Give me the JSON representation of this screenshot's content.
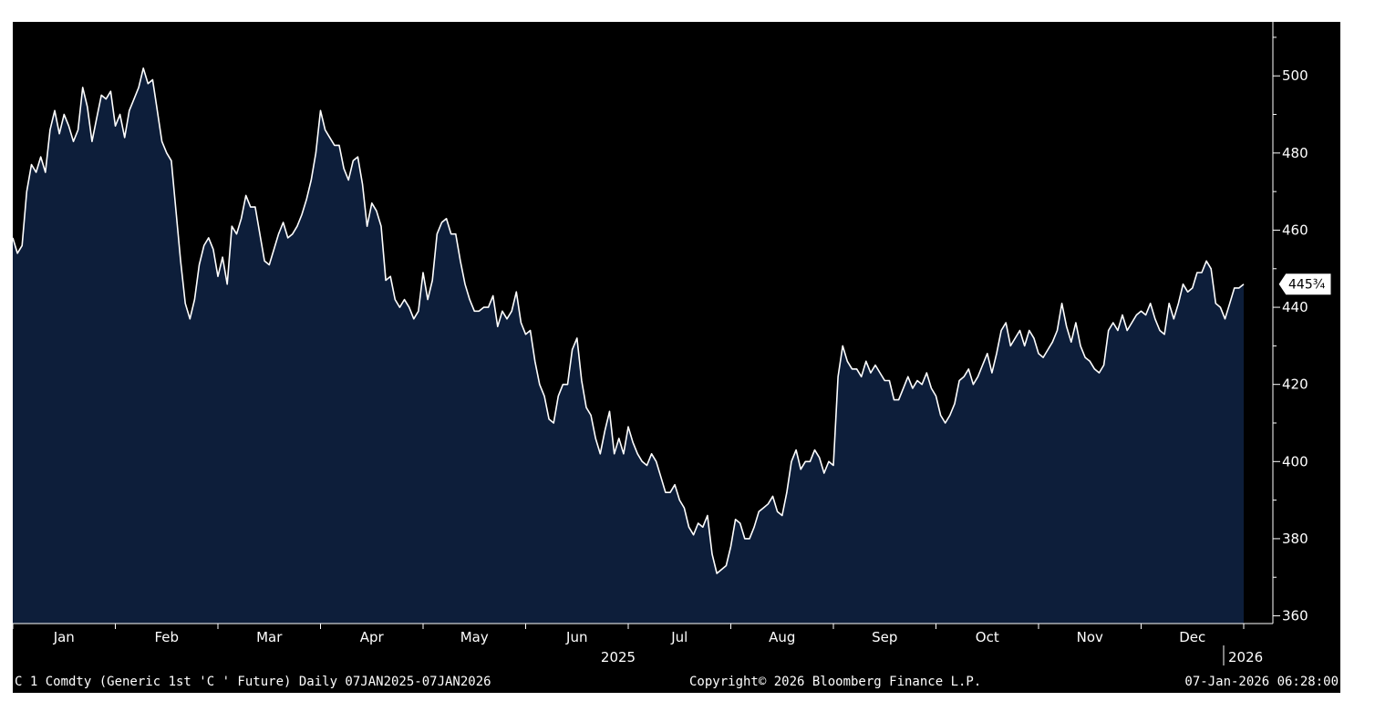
{
  "chart_data": {
    "type": "area",
    "ylim": [
      358,
      514
    ],
    "y_ticks": [
      360,
      380,
      400,
      420,
      440,
      460,
      480,
      500
    ],
    "month_ticks": [
      "Jan",
      "Feb",
      "Mar",
      "Apr",
      "May",
      "Jun",
      "Jul",
      "Aug",
      "Sep",
      "Oct",
      "Nov",
      "Dec"
    ],
    "year_labels": [
      "2025",
      "2026"
    ],
    "last_value_label": "445¾",
    "series": [
      {
        "values": [
          458,
          454,
          456,
          470,
          477,
          475,
          479,
          475,
          486,
          491,
          485,
          490,
          487,
          483,
          486,
          497,
          492,
          483,
          489,
          495,
          494,
          496,
          487,
          490,
          484,
          491,
          494,
          497,
          502,
          498,
          499,
          491,
          483,
          480,
          478,
          465,
          452,
          441,
          437,
          442,
          451,
          456,
          458,
          455,
          448,
          453,
          446,
          461,
          459,
          463,
          469,
          466,
          466,
          459,
          452,
          451,
          455,
          459,
          462,
          458,
          459,
          461,
          464,
          468,
          473,
          480,
          491,
          486,
          484,
          482,
          482,
          476,
          473,
          478,
          479,
          472,
          461,
          467,
          465,
          461,
          447,
          448,
          442,
          440,
          442,
          440,
          437,
          439,
          449,
          442,
          447,
          459,
          462,
          463,
          459,
          459,
          452,
          446,
          442,
          439,
          439,
          440,
          440,
          443,
          435,
          439,
          437,
          439,
          444,
          436,
          433,
          434,
          426,
          420,
          417,
          411,
          410,
          417,
          420,
          420,
          429,
          432,
          421,
          414,
          412,
          406,
          402,
          408,
          413,
          402,
          406,
          402,
          409,
          405,
          402,
          400,
          399,
          402,
          400,
          396,
          392,
          392,
          394,
          390,
          388,
          383,
          381,
          384,
          383,
          386,
          376,
          371,
          372,
          373,
          378,
          385,
          384,
          380,
          380,
          383,
          387,
          388,
          389,
          391,
          387,
          386,
          392,
          400,
          403,
          398,
          400,
          400,
          403,
          401,
          397,
          400,
          399,
          422,
          430,
          426,
          424,
          424,
          422,
          426,
          423,
          425,
          423,
          421,
          421,
          416,
          416,
          419,
          422,
          419,
          421,
          420,
          423,
          419,
          417,
          412,
          410,
          412,
          415,
          421,
          422,
          424,
          420,
          422,
          425,
          428,
          423,
          428,
          434,
          436,
          430,
          432,
          434,
          430,
          434,
          432,
          428,
          427,
          429,
          431,
          434,
          441,
          435,
          431,
          436,
          430,
          427,
          426,
          424,
          423,
          425,
          434,
          436,
          434,
          438,
          434,
          436,
          438,
          439,
          438,
          441,
          437,
          434,
          433,
          441,
          437,
          441,
          446,
          444,
          445,
          449,
          449,
          452,
          450,
          441,
          440,
          437,
          441,
          445,
          445,
          446
        ]
      }
    ]
  },
  "footer": {
    "left": "C 1 Comdty (Generic 1st 'C ' Future) Daily 07JAN2025-07JAN2026",
    "center": "Copyright© 2026 Bloomberg Finance L.P.",
    "right": "07-Jan-2026 06:28:00"
  },
  "colors": {
    "background": "#000000",
    "area_fill": "#0d1e3a",
    "line": "#ffffff",
    "text": "#ffffff"
  }
}
